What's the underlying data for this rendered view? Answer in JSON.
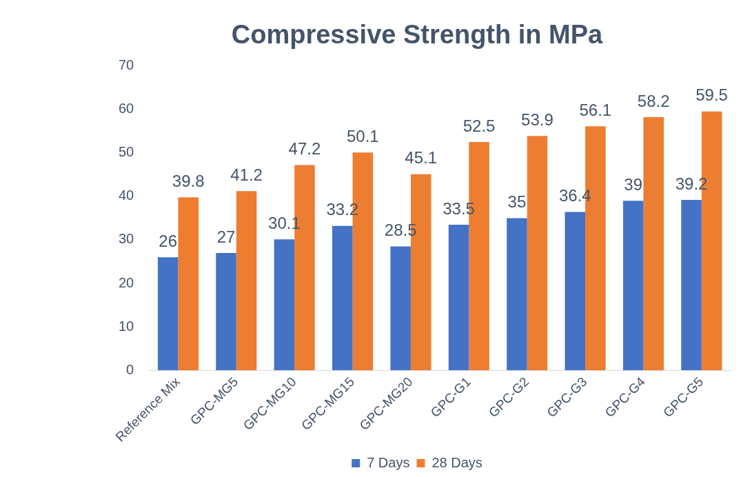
{
  "chart_data": {
    "type": "bar",
    "title": "Compressive Strength in MPa",
    "categories": [
      "Reference Mix",
      "GPC-MG5",
      "GPC-MG10",
      "GPC-MG15",
      "GPC-MG20",
      "GPC-G1",
      "GPC-G2",
      "GPC-G3",
      "GPC-G4",
      "GPC-G5"
    ],
    "series": [
      {
        "name": "7 Days",
        "color": "#4472c4",
        "values": [
          26,
          27,
          30.1,
          33.2,
          28.5,
          33.5,
          35,
          36.4,
          39,
          39.2
        ]
      },
      {
        "name": "28 Days",
        "color": "#ed7d31",
        "values": [
          39.8,
          41.2,
          47.2,
          50.1,
          45.1,
          52.5,
          53.9,
          56.1,
          58.2,
          59.5
        ]
      }
    ],
    "ylim": [
      0,
      70
    ],
    "yticks": [
      0,
      10,
      20,
      30,
      40,
      50,
      60,
      70
    ],
    "grid": false,
    "legend": "bottom",
    "data_labels": true
  }
}
